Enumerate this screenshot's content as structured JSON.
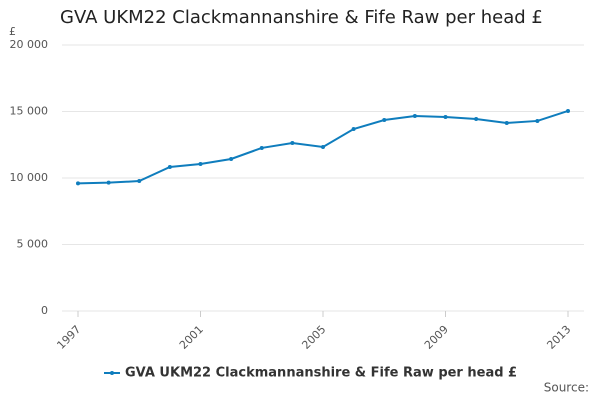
{
  "chart_data": {
    "type": "line",
    "title": "GVA UKM22 Clackmannanshire & Fife Raw per head £",
    "y_label": "£",
    "source": "Source:",
    "x": [
      1997,
      1998,
      1999,
      2000,
      2001,
      2002,
      2003,
      2004,
      2005,
      2006,
      2007,
      2008,
      2009,
      2010,
      2011,
      2012,
      2013
    ],
    "series": [
      {
        "name": "GVA UKM22 Clackmannanshire & Fife Raw per head £",
        "color": "#0f7dbd",
        "values": [
          9600,
          9650,
          9770,
          10830,
          11050,
          11430,
          12260,
          12630,
          12330,
          13680,
          14360,
          14660,
          14590,
          14440,
          14140,
          14290,
          15040
        ]
      }
    ],
    "xlim": [
      1997,
      2013
    ],
    "xticks": [
      1997,
      2001,
      2005,
      2009,
      2013
    ],
    "ylim": [
      0,
      20000
    ],
    "yticks": [
      0,
      {
        "value": 5000,
        "label": "5 000"
      },
      {
        "value": 10000,
        "label": "10 000"
      },
      {
        "value": 15000,
        "label": "15 000"
      },
      {
        "value": 20000,
        "label": "20 000"
      }
    ],
    "grid": true
  }
}
